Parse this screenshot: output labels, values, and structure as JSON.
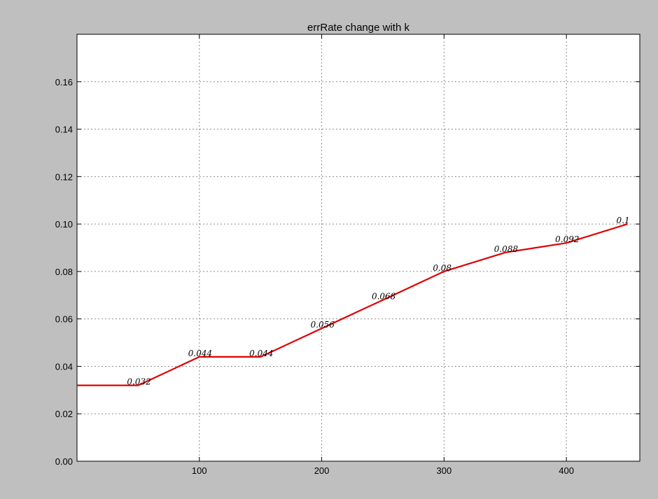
{
  "chart_data": {
    "type": "line",
    "title": "errRate change with k",
    "xlabel": "",
    "ylabel": "",
    "xlim": [
      0,
      460
    ],
    "ylim": [
      0,
      0.18
    ],
    "x_ticks": [
      "100",
      "200",
      "300",
      "400"
    ],
    "x_tick_values": [
      100,
      200,
      300,
      400
    ],
    "y_ticks": [
      "0.00",
      "0.02",
      "0.04",
      "0.06",
      "0.08",
      "0.10",
      "0.12",
      "0.14",
      "0.16"
    ],
    "y_tick_values": [
      0,
      0.02,
      0.04,
      0.06,
      0.08,
      0.1,
      0.12,
      0.14,
      0.16
    ],
    "grid": true,
    "series": [
      {
        "color": "#e00000",
        "x": [
          0,
          50,
          100,
          150,
          200,
          250,
          300,
          350,
          400,
          450
        ],
        "y": [
          0.032,
          0.032,
          0.044,
          0.044,
          0.056,
          0.068,
          0.08,
          0.088,
          0.092,
          0.1
        ],
        "point_labels": [
          "",
          "0.032",
          "0.044",
          "0.044",
          "0.056",
          "0.068",
          "0.08",
          "0.088",
          "0.092",
          "0.1"
        ]
      }
    ]
  }
}
